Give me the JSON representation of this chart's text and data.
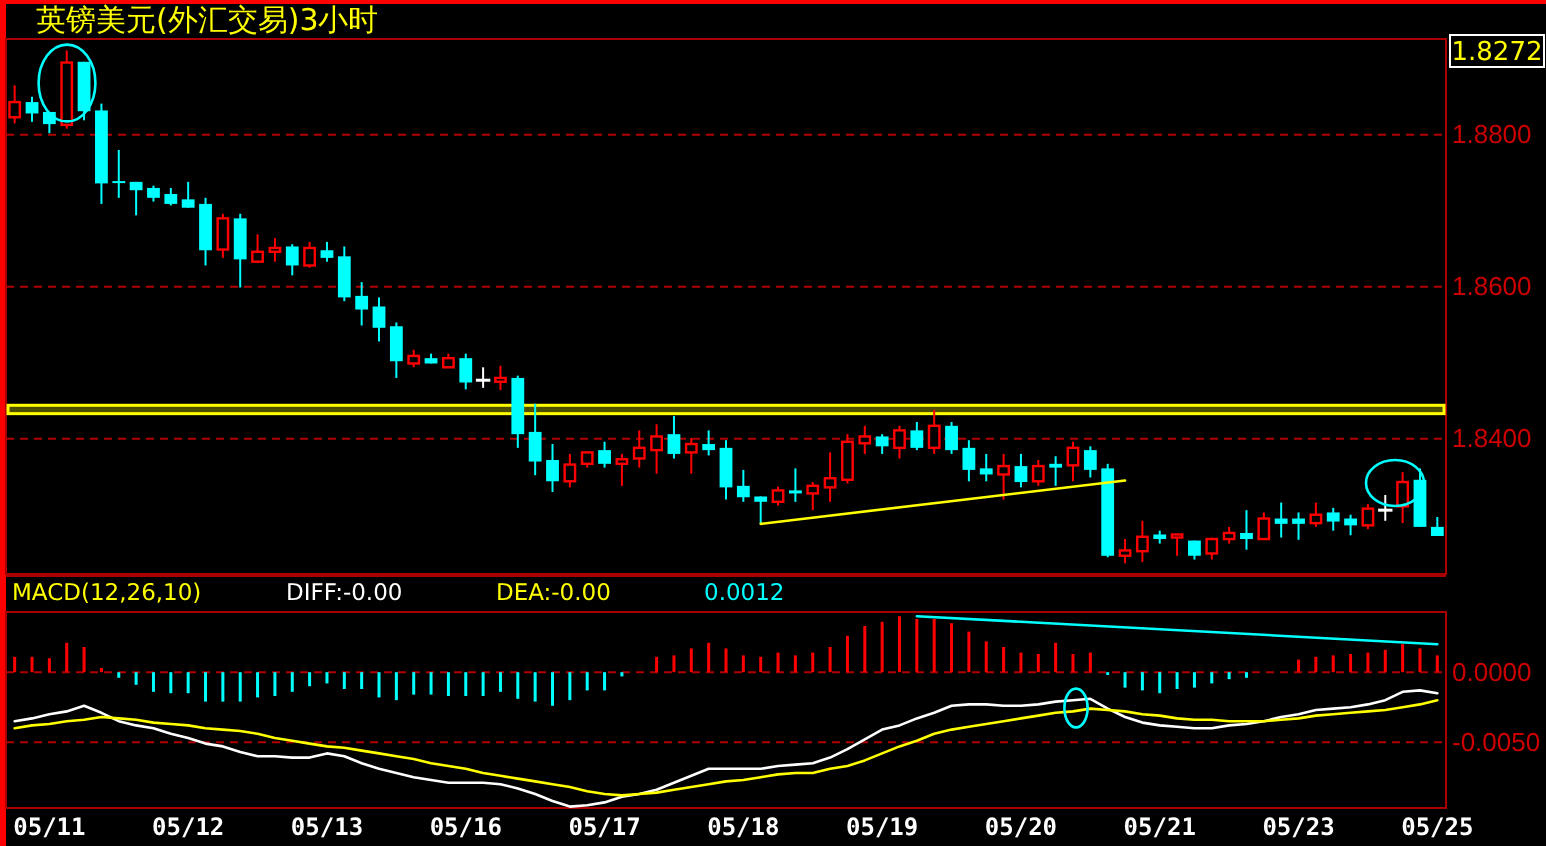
{
  "chart_data": [
    {
      "type": "candlestick",
      "title": "英镑美元(外汇交易)3小时",
      "categories": [
        null,
        null,
        null,
        null,
        null,
        null,
        null,
        null,
        null,
        null,
        null,
        null,
        null,
        null,
        null,
        null,
        null,
        null,
        null,
        null,
        null,
        null,
        null,
        null,
        null,
        null,
        null,
        null,
        null,
        null,
        null,
        null,
        null,
        null,
        null,
        null,
        null,
        null,
        null,
        null,
        null,
        null,
        null,
        null,
        null,
        null,
        null,
        null,
        null,
        null,
        null,
        null,
        null,
        null,
        null,
        null,
        null,
        null,
        null,
        null,
        null,
        null,
        null,
        null,
        null,
        null,
        null,
        null,
        null,
        null,
        null,
        null,
        null,
        null,
        null,
        null,
        null,
        null,
        null,
        null,
        null,
        null,
        null
      ],
      "ohlc": [
        [
          1.8823,
          1.8865,
          1.8815,
          1.8843
        ],
        [
          1.8843,
          1.885,
          1.8817,
          1.8828
        ],
        [
          1.883,
          1.883,
          1.8802,
          1.8814
        ],
        [
          1.8813,
          1.8911,
          1.8808,
          1.8895
        ],
        [
          1.8896,
          1.8896,
          1.8819,
          1.8831
        ],
        [
          1.8832,
          1.8841,
          1.8709,
          1.8736
        ],
        [
          1.8739,
          1.878,
          1.8717,
          1.8738
        ],
        [
          1.8738,
          1.8738,
          1.8694,
          1.8727
        ],
        [
          1.873,
          1.8733,
          1.8712,
          1.8717
        ],
        [
          1.8722,
          1.873,
          1.8707,
          1.8709
        ],
        [
          1.8715,
          1.8738,
          1.8704,
          1.8704
        ],
        [
          1.8709,
          1.8717,
          1.8628,
          1.8648
        ],
        [
          1.8649,
          1.8696,
          1.8638,
          1.869
        ],
        [
          1.869,
          1.8696,
          1.8599,
          1.8636
        ],
        [
          1.8633,
          1.8669,
          1.8633,
          1.8646
        ],
        [
          1.8646,
          1.8664,
          1.8633,
          1.8651
        ],
        [
          1.8653,
          1.8656,
          1.8615,
          1.8628
        ],
        [
          1.8628,
          1.8659,
          1.8625,
          1.8651
        ],
        [
          1.8648,
          1.8659,
          1.8633,
          1.8638
        ],
        [
          1.864,
          1.8653,
          1.8581,
          1.8586
        ],
        [
          1.8588,
          1.8606,
          1.8549,
          1.857
        ],
        [
          1.8574,
          1.8586,
          1.8528,
          1.8546
        ],
        [
          1.8548,
          1.8553,
          1.848,
          1.8502
        ],
        [
          1.8499,
          1.8517,
          1.8494,
          1.8509
        ],
        [
          1.8506,
          1.8512,
          1.8499,
          1.8499
        ],
        [
          1.8494,
          1.8512,
          1.8494,
          1.8506
        ],
        [
          1.8506,
          1.8512,
          1.8465,
          1.8474
        ],
        [
          1.8477,
          1.8494,
          1.8467,
          1.8477
        ],
        [
          1.8475,
          1.8496,
          1.8464,
          1.848
        ],
        [
          1.848,
          1.8483,
          1.8388,
          1.8406
        ],
        [
          1.8409,
          1.8446,
          1.8352,
          1.837
        ],
        [
          1.8372,
          1.8393,
          1.833,
          1.8344
        ],
        [
          1.8344,
          1.838,
          1.8336,
          1.8366
        ],
        [
          1.8367,
          1.8382,
          1.8362,
          1.8382
        ],
        [
          1.8385,
          1.8396,
          1.8362,
          1.8367
        ],
        [
          1.8367,
          1.838,
          1.8338,
          1.8373
        ],
        [
          1.8374,
          1.8411,
          1.8362,
          1.8388
        ],
        [
          1.8385,
          1.8419,
          1.8354,
          1.8403
        ],
        [
          1.8406,
          1.843,
          1.8374,
          1.838
        ],
        [
          1.8382,
          1.8401,
          1.8354,
          1.8393
        ],
        [
          1.8393,
          1.8411,
          1.8378,
          1.8385
        ],
        [
          1.8388,
          1.8398,
          1.832,
          1.8336
        ],
        [
          1.8338,
          1.8359,
          1.8317,
          1.8323
        ],
        [
          1.8324,
          1.8324,
          1.8288,
          1.8317
        ],
        [
          1.8317,
          1.8337,
          1.8312,
          1.8332
        ],
        [
          1.8332,
          1.8361,
          1.8317,
          1.8328
        ],
        [
          1.8328,
          1.8343,
          1.8306,
          1.8338
        ],
        [
          1.8336,
          1.8382,
          1.8317,
          1.8348
        ],
        [
          1.8346,
          1.8406,
          1.8341,
          1.8396
        ],
        [
          1.8394,
          1.8417,
          1.838,
          1.8403
        ],
        [
          1.8403,
          1.8406,
          1.838,
          1.839
        ],
        [
          1.8388,
          1.8417,
          1.8374,
          1.8411
        ],
        [
          1.8411,
          1.8422,
          1.8385,
          1.8388
        ],
        [
          1.8388,
          1.8438,
          1.838,
          1.8417
        ],
        [
          1.8417,
          1.8422,
          1.838,
          1.8385
        ],
        [
          1.8388,
          1.8398,
          1.8344,
          1.8359
        ],
        [
          1.8361,
          1.838,
          1.8344,
          1.8353
        ],
        [
          1.8353,
          1.838,
          1.832,
          1.8364
        ],
        [
          1.8364,
          1.838,
          1.8336,
          1.8343
        ],
        [
          1.8344,
          1.8372,
          1.8338,
          1.8364
        ],
        [
          1.8367,
          1.8377,
          1.8338,
          1.8362
        ],
        [
          1.8365,
          1.8396,
          1.8344,
          1.8388
        ],
        [
          1.8385,
          1.839,
          1.8349,
          1.8359
        ],
        [
          1.8361,
          1.8367,
          1.8244,
          1.8246
        ],
        [
          1.8246,
          1.8268,
          1.8236,
          1.8253
        ],
        [
          1.8252,
          1.8292,
          1.8238,
          1.8271
        ],
        [
          1.8274,
          1.8279,
          1.8262,
          1.8268
        ],
        [
          1.827,
          1.8274,
          1.8246,
          1.8274
        ],
        [
          1.8266,
          1.8266,
          1.8241,
          1.8246
        ],
        [
          1.8249,
          1.827,
          1.8241,
          1.8268
        ],
        [
          1.8268,
          1.8284,
          1.8262,
          1.8276
        ],
        [
          1.8276,
          1.8306,
          1.8254,
          1.8268
        ],
        [
          1.8268,
          1.8303,
          1.8268,
          1.8295
        ],
        [
          1.8295,
          1.8316,
          1.827,
          1.8288
        ],
        [
          1.8295,
          1.8303,
          1.8267,
          1.8288
        ],
        [
          1.8289,
          1.8316,
          1.8284,
          1.83
        ],
        [
          1.8303,
          1.8309,
          1.8279,
          1.8291
        ],
        [
          1.8295,
          1.83,
          1.8273,
          1.8286
        ],
        [
          1.8286,
          1.8314,
          1.8281,
          1.8308
        ],
        [
          1.8306,
          1.8326,
          1.8292,
          1.8306
        ],
        [
          1.8311,
          1.8356,
          1.8289,
          1.8343
        ],
        [
          1.8346,
          1.8361,
          1.8284,
          1.8284
        ],
        [
          1.8284,
          1.8297,
          1.8272,
          1.8272
        ]
      ],
      "colors": [
        "#ff0000",
        "#00ffff",
        "#00ffff",
        "#ff0000",
        "#00ffff",
        "#00ffff",
        "#00ffff",
        "#00ffff",
        "#00ffff",
        "#00ffff",
        "#00ffff",
        "#00ffff",
        "#ff0000",
        "#00ffff",
        "#ff0000",
        "#ff0000",
        "#00ffff",
        "#ff0000",
        "#00ffff",
        "#00ffff",
        "#00ffff",
        "#00ffff",
        "#00ffff",
        "#ff0000",
        "#00ffff",
        "#ff0000",
        "#00ffff",
        "#ffffff",
        "#ff0000",
        "#00ffff",
        "#00ffff",
        "#00ffff",
        "#ff0000",
        "#ff0000",
        "#00ffff",
        "#ff0000",
        "#ff0000",
        "#ff0000",
        "#00ffff",
        "#ff0000",
        "#00ffff",
        "#00ffff",
        "#00ffff",
        "#00ffff",
        "#ff0000",
        "#00ffff",
        "#ff0000",
        "#ff0000",
        "#ff0000",
        "#ff0000",
        "#00ffff",
        "#ff0000",
        "#00ffff",
        "#ff0000",
        "#00ffff",
        "#00ffff",
        "#00ffff",
        "#ff0000",
        "#00ffff",
        "#ff0000",
        "#00ffff",
        "#ff0000",
        "#00ffff",
        "#00ffff",
        "#ff0000",
        "#ff0000",
        "#00ffff",
        "#ff0000",
        "#00ffff",
        "#ff0000",
        "#ff0000",
        "#00ffff",
        "#ff0000",
        "#00ffff",
        "#00ffff",
        "#ff0000",
        "#00ffff",
        "#00ffff",
        "#ff0000",
        "#ffffff",
        "#ff0000",
        "#00ffff",
        "#00ffff"
      ],
      "series": [
        {
          "type": "line",
          "color": "#ffff00",
          "values": [
            null,
            null,
            null,
            null,
            null,
            null,
            null,
            null,
            null,
            null,
            null,
            null,
            null,
            null,
            null,
            null,
            null,
            null,
            null,
            null,
            null,
            null,
            null,
            null,
            null,
            null,
            null,
            null,
            null,
            null,
            null,
            null,
            null,
            null,
            null,
            null,
            null,
            null,
            null,
            null,
            null,
            null,
            null,
            1.8288,
            null,
            null,
            null,
            null,
            null,
            null,
            null,
            null,
            null,
            null,
            null,
            null,
            null,
            null,
            null,
            null,
            null,
            null,
            null,
            null,
            1.8345,
            null,
            null,
            null,
            null,
            null,
            null,
            null,
            null,
            null,
            null,
            null,
            null,
            null,
            null,
            null,
            null,
            null,
            null
          ]
        }
      ],
      "bands": [
        {
          "axis": "y",
          "from": 1.8433,
          "to": 1.8444,
          "color": "#ffff00"
        }
      ],
      "ylim": [
        1.8222,
        1.8926
      ],
      "yticks": [
        {
          "value": 1.84,
          "label": "1.8400"
        },
        {
          "value": 1.86,
          "label": "1.8600"
        },
        {
          "value": 1.88,
          "label": "1.8800"
        }
      ],
      "grid": "y",
      "tick_labels": "y",
      "annotations": [
        "1.8272"
      ]
    },
    {
      "type": "bar",
      "title": "MACD(12,26,10)",
      "categories": [
        null,
        null,
        "05/11",
        null,
        null,
        null,
        null,
        null,
        null,
        null,
        "05/12",
        null,
        null,
        null,
        null,
        null,
        null,
        null,
        "05/13",
        null,
        null,
        null,
        null,
        null,
        null,
        null,
        "05/16",
        null,
        null,
        null,
        null,
        null,
        null,
        null,
        "05/17",
        null,
        null,
        null,
        null,
        null,
        null,
        null,
        "05/18",
        null,
        null,
        null,
        null,
        null,
        null,
        null,
        "05/19",
        null,
        null,
        null,
        null,
        null,
        null,
        null,
        "05/20",
        null,
        null,
        null,
        null,
        null,
        null,
        null,
        "05/21",
        null,
        null,
        null,
        null,
        null,
        null,
        null,
        "05/23",
        null,
        null,
        null,
        null,
        null,
        null,
        null,
        "05/25"
      ],
      "series": [
        {
          "type": "bar",
          "values": [
            0.0011,
            0.0011,
            0.001,
            0.0021,
            0.0018,
            0.0003,
            -0.0004,
            -0.0009,
            -0.0014,
            -0.0015,
            -0.0015,
            -0.0021,
            -0.0021,
            -0.0021,
            -0.0018,
            -0.0017,
            -0.0014,
            -0.001,
            -0.0008,
            -0.0012,
            -0.0012,
            -0.0018,
            -0.002,
            -0.0016,
            -0.0016,
            -0.0017,
            -0.0017,
            -0.0017,
            -0.0014,
            -0.0019,
            -0.0021,
            -0.0024,
            -0.002,
            -0.0013,
            -0.0013,
            -0.0003,
            0,
            0.0011,
            0.0012,
            0.0017,
            0.0021,
            0.0017,
            0.0012,
            0.0011,
            0.0014,
            0.0012,
            0.0014,
            0.0018,
            0.0026,
            0.0033,
            0.0036,
            0.004,
            0.0038,
            0.0038,
            0.0035,
            0.0029,
            0.0022,
            0.0018,
            0.0014,
            0.0013,
            0.0021,
            0.0013,
            0.0014,
            -0.0002,
            -0.0011,
            -0.0013,
            -0.0015,
            -0.0012,
            -0.0011,
            -0.0008,
            -0.0005,
            -0.0004,
            0,
            0,
            0.0009,
            0.0011,
            0.0012,
            0.0013,
            0.0014,
            0.0016,
            0.002,
            0.0017,
            0.0012
          ],
          "colors": [
            "#ff0000",
            "#ff0000",
            "#ff0000",
            "#ff0000",
            "#ff0000",
            "#ff0000",
            "#00ffff",
            "#00ffff",
            "#00ffff",
            "#00ffff",
            "#00ffff",
            "#00ffff",
            "#00ffff",
            "#00ffff",
            "#00ffff",
            "#00ffff",
            "#00ffff",
            "#00ffff",
            "#00ffff",
            "#00ffff",
            "#00ffff",
            "#00ffff",
            "#00ffff",
            "#00ffff",
            "#00ffff",
            "#00ffff",
            "#00ffff",
            "#00ffff",
            "#00ffff",
            "#00ffff",
            "#00ffff",
            "#00ffff",
            "#00ffff",
            "#00ffff",
            "#00ffff",
            "#00ffff",
            "#ff0000",
            "#ff0000",
            "#ff0000",
            "#ff0000",
            "#ff0000",
            "#ff0000",
            "#ff0000",
            "#ff0000",
            "#ff0000",
            "#ff0000",
            "#ff0000",
            "#ff0000",
            "#ff0000",
            "#ff0000",
            "#ff0000",
            "#ff0000",
            "#ff0000",
            "#ff0000",
            "#ff0000",
            "#ff0000",
            "#ff0000",
            "#ff0000",
            "#ff0000",
            "#ff0000",
            "#ff0000",
            "#ff0000",
            "#ff0000",
            "#00ffff",
            "#00ffff",
            "#00ffff",
            "#00ffff",
            "#00ffff",
            "#00ffff",
            "#00ffff",
            "#00ffff",
            "#00ffff",
            "#ff0000",
            "#ff0000",
            "#ff0000",
            "#ff0000",
            "#ff0000",
            "#ff0000",
            "#ff0000",
            "#ff0000",
            "#ff0000",
            "#ff0000",
            "#ff0000"
          ]
        },
        {
          "type": "line",
          "name": "DIFF:-0.00",
          "color": "#ffffff",
          "values": [
            -0.0035,
            -0.0033,
            -0.003,
            -0.0028,
            -0.0024,
            -0.0029,
            -0.0035,
            -0.0038,
            -0.004,
            -0.0044,
            -0.0047,
            -0.0051,
            -0.0053,
            -0.0057,
            -0.006,
            -0.006,
            -0.0061,
            -0.0061,
            -0.0058,
            -0.006,
            -0.0065,
            -0.0069,
            -0.0072,
            -0.0075,
            -0.0077,
            -0.0079,
            -0.0079,
            -0.0079,
            -0.008,
            -0.0083,
            -0.0087,
            -0.0092,
            -0.0096,
            -0.0095,
            -0.0093,
            -0.0089,
            -0.0087,
            -0.0084,
            -0.0079,
            -0.0074,
            -0.0069,
            -0.0069,
            -0.0069,
            -0.0069,
            -0.0067,
            -0.0066,
            -0.0065,
            -0.0061,
            -0.0055,
            -0.0048,
            -0.0041,
            -0.0038,
            -0.0033,
            -0.0029,
            -0.0024,
            -0.0023,
            -0.0023,
            -0.0024,
            -0.0024,
            -0.0023,
            -0.0021,
            -0.002,
            -0.0019,
            -0.0026,
            -0.0032,
            -0.0036,
            -0.0038,
            -0.0039,
            -0.004,
            -0.004,
            -0.0038,
            -0.0037,
            -0.0035,
            -0.0032,
            -0.003,
            -0.0027,
            -0.0026,
            -0.0025,
            -0.0023,
            -0.002,
            -0.0014,
            -0.0013,
            -0.0015
          ]
        },
        {
          "type": "line",
          "name": "DEA:-0.00",
          "color": "#ffff00",
          "values": [
            -0.004,
            -0.0038,
            -0.0037,
            -0.0035,
            -0.0034,
            -0.0032,
            -0.0033,
            -0.0034,
            -0.0036,
            -0.0037,
            -0.0038,
            -0.004,
            -0.0041,
            -0.0042,
            -0.0044,
            -0.0047,
            -0.0049,
            -0.0051,
            -0.0053,
            -0.0054,
            -0.0056,
            -0.0058,
            -0.006,
            -0.0062,
            -0.0065,
            -0.0067,
            -0.0069,
            -0.0072,
            -0.0074,
            -0.0076,
            -0.0078,
            -0.008,
            -0.0082,
            -0.0085,
            -0.0087,
            -0.0088,
            -0.0087,
            -0.0086,
            -0.0084,
            -0.0082,
            -0.008,
            -0.0078,
            -0.0077,
            -0.0075,
            -0.0073,
            -0.0072,
            -0.0072,
            -0.0069,
            -0.0067,
            -0.0063,
            -0.0058,
            -0.0053,
            -0.0049,
            -0.0044,
            -0.0041,
            -0.0039,
            -0.0037,
            -0.0035,
            -0.0033,
            -0.0031,
            -0.0029,
            -0.0028,
            -0.0026,
            -0.0027,
            -0.0028,
            -0.003,
            -0.0031,
            -0.0033,
            -0.0034,
            -0.0034,
            -0.0035,
            -0.0035,
            -0.0035,
            -0.0034,
            -0.0033,
            -0.0031,
            -0.003,
            -0.0029,
            -0.0028,
            -0.0027,
            -0.0025,
            -0.0023,
            -0.002
          ]
        },
        {
          "type": "line",
          "color": "#00ffff",
          "values": [
            null,
            null,
            null,
            null,
            null,
            null,
            null,
            null,
            null,
            null,
            null,
            null,
            null,
            null,
            null,
            null,
            null,
            null,
            null,
            null,
            null,
            null,
            null,
            null,
            null,
            null,
            null,
            null,
            null,
            null,
            null,
            null,
            null,
            null,
            null,
            null,
            null,
            null,
            null,
            null,
            null,
            null,
            null,
            null,
            null,
            null,
            null,
            null,
            null,
            null,
            null,
            null,
            0.004,
            null,
            null,
            null,
            null,
            null,
            null,
            null,
            null,
            null,
            null,
            null,
            null,
            null,
            null,
            null,
            null,
            null,
            null,
            null,
            null,
            null,
            null,
            null,
            null,
            null,
            null,
            null,
            null,
            null,
            0.002
          ]
        }
      ],
      "ylim": [
        -0.0097,
        0.0043
      ],
      "yticks": [
        {
          "value": -0.005,
          "label": "-0.0050"
        },
        {
          "value": 0,
          "label": "0.0000"
        }
      ],
      "grid": "y",
      "legend": "top",
      "annotations": [
        "0.0012"
      ]
    }
  ]
}
